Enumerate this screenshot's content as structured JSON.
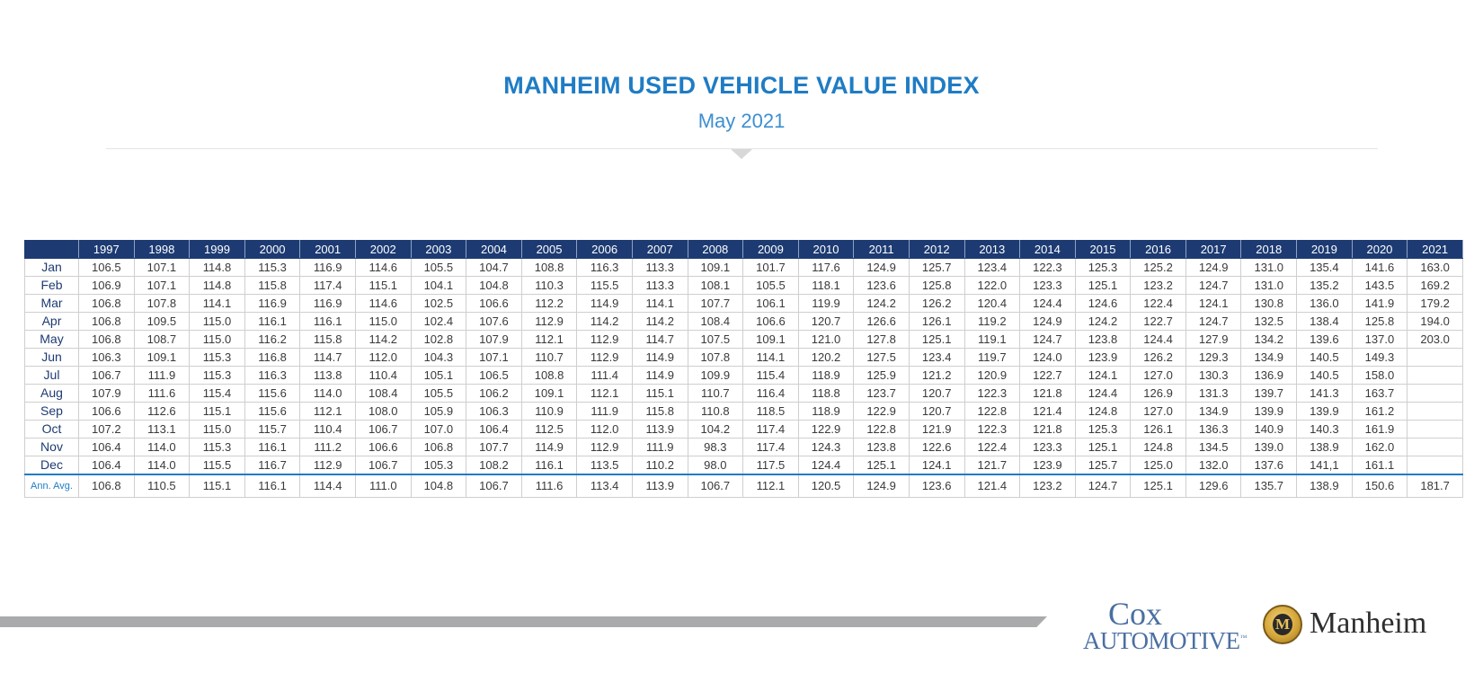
{
  "header": {
    "title": "MANHEIM USED VEHICLE VALUE INDEX",
    "subtitle": "May 2021"
  },
  "chart_data": {
    "type": "table",
    "title": "MANHEIM USED VEHICLE VALUE INDEX",
    "subtitle": "May 2021",
    "columns": [
      "1997",
      "1998",
      "1999",
      "2000",
      "2001",
      "2002",
      "2003",
      "2004",
      "2005",
      "2006",
      "2007",
      "2008",
      "2009",
      "2010",
      "2011",
      "2012",
      "2013",
      "2014",
      "2015",
      "2016",
      "2017",
      "2018",
      "2019",
      "2020",
      "2021"
    ],
    "rows": [
      {
        "label": "Jan",
        "values": [
          "106.5",
          "107.1",
          "114.8",
          "115.3",
          "116.9",
          "114.6",
          "105.5",
          "104.7",
          "108.8",
          "116.3",
          "113.3",
          "109.1",
          "101.7",
          "117.6",
          "124.9",
          "125.7",
          "123.4",
          "122.3",
          "125.3",
          "125.2",
          "124.9",
          "131.0",
          "135.4",
          "141.6",
          "163.0"
        ]
      },
      {
        "label": "Feb",
        "values": [
          "106.9",
          "107.1",
          "114.8",
          "115.8",
          "117.4",
          "115.1",
          "104.1",
          "104.8",
          "110.3",
          "115.5",
          "113.3",
          "108.1",
          "105.5",
          "118.1",
          "123.6",
          "125.8",
          "122.0",
          "123.3",
          "125.1",
          "123.2",
          "124.7",
          "131.0",
          "135.2",
          "143.5",
          "169.2"
        ]
      },
      {
        "label": "Mar",
        "values": [
          "106.8",
          "107.8",
          "114.1",
          "116.9",
          "116.9",
          "114.6",
          "102.5",
          "106.6",
          "112.2",
          "114.9",
          "114.1",
          "107.7",
          "106.1",
          "119.9",
          "124.2",
          "126.2",
          "120.4",
          "124.4",
          "124.6",
          "122.4",
          "124.1",
          "130.8",
          "136.0",
          "141.9",
          "179.2"
        ]
      },
      {
        "label": "Apr",
        "values": [
          "106.8",
          "109.5",
          "115.0",
          "116.1",
          "116.1",
          "115.0",
          "102.4",
          "107.6",
          "112.9",
          "114.2",
          "114.2",
          "108.4",
          "106.6",
          "120.7",
          "126.6",
          "126.1",
          "119.2",
          "124.9",
          "124.2",
          "122.7",
          "124.7",
          "132.5",
          "138.4",
          "125.8",
          "194.0"
        ]
      },
      {
        "label": "May",
        "values": [
          "106.8",
          "108.7",
          "115.0",
          "116.2",
          "115.8",
          "114.2",
          "102.8",
          "107.9",
          "112.1",
          "112.9",
          "114.7",
          "107.5",
          "109.1",
          "121.0",
          "127.8",
          "125.1",
          "119.1",
          "124.7",
          "123.8",
          "124.4",
          "127.9",
          "134.2",
          "139.6",
          "137.0",
          "203.0"
        ]
      },
      {
        "label": "Jun",
        "values": [
          "106.3",
          "109.1",
          "115.3",
          "116.8",
          "114.7",
          "112.0",
          "104.3",
          "107.1",
          "110.7",
          "112.9",
          "114.9",
          "107.8",
          "114.1",
          "120.2",
          "127.5",
          "123.4",
          "119.7",
          "124.0",
          "123.9",
          "126.2",
          "129.3",
          "134.9",
          "140.5",
          "149.3",
          ""
        ]
      },
      {
        "label": "Jul",
        "values": [
          "106.7",
          "111.9",
          "115.3",
          "116.3",
          "113.8",
          "110.4",
          "105.1",
          "106.5",
          "108.8",
          "111.4",
          "114.9",
          "109.9",
          "115.4",
          "118.9",
          "125.9",
          "121.2",
          "120.9",
          "122.7",
          "124.1",
          "127.0",
          "130.3",
          "136.9",
          "140.5",
          "158.0",
          ""
        ]
      },
      {
        "label": "Aug",
        "values": [
          "107.9",
          "111.6",
          "115.4",
          "115.6",
          "114.0",
          "108.4",
          "105.5",
          "106.2",
          "109.1",
          "112.1",
          "115.1",
          "110.7",
          "116.4",
          "118.8",
          "123.7",
          "120.7",
          "122.3",
          "121.8",
          "124.4",
          "126.9",
          "131.3",
          "139.7",
          "141.3",
          "163.7",
          ""
        ]
      },
      {
        "label": "Sep",
        "values": [
          "106.6",
          "112.6",
          "115.1",
          "115.6",
          "112.1",
          "108.0",
          "105.9",
          "106.3",
          "110.9",
          "111.9",
          "115.8",
          "110.8",
          "118.5",
          "118.9",
          "122.9",
          "120.7",
          "122.8",
          "121.4",
          "124.8",
          "127.0",
          "134.9",
          "139.9",
          "139.9",
          "161.2",
          ""
        ]
      },
      {
        "label": "Oct",
        "values": [
          "107.2",
          "113.1",
          "115.0",
          "115.7",
          "110.4",
          "106.7",
          "107.0",
          "106.4",
          "112.5",
          "112.0",
          "113.9",
          "104.2",
          "117.4",
          "122.9",
          "122.8",
          "121.9",
          "122.3",
          "121.8",
          "125.3",
          "126.1",
          "136.3",
          "140.9",
          "140.3",
          "161.9",
          ""
        ]
      },
      {
        "label": "Nov",
        "values": [
          "106.4",
          "114.0",
          "115.3",
          "116.1",
          "111.2",
          "106.6",
          "106.8",
          "107.7",
          "114.9",
          "112.9",
          "111.9",
          "98.3",
          "117.4",
          "124.3",
          "123.8",
          "122.6",
          "122.4",
          "123.3",
          "125.1",
          "124.8",
          "134.5",
          "139.0",
          "138.9",
          "162.0",
          ""
        ]
      },
      {
        "label": "Dec",
        "values": [
          "106.4",
          "114.0",
          "115.5",
          "116.7",
          "112.9",
          "106.7",
          "105.3",
          "108.2",
          "116.1",
          "113.5",
          "110.2",
          "98.0",
          "117.5",
          "124.4",
          "125.1",
          "124.1",
          "121.7",
          "123.9",
          "125.7",
          "125.0",
          "132.0",
          "137.6",
          "141,1",
          "161.1",
          ""
        ]
      }
    ],
    "average_row": {
      "label": "Ann. Avg.",
      "values": [
        "106.8",
        "110.5",
        "115.1",
        "116.1",
        "114.4",
        "111.0",
        "104.8",
        "106.7",
        "111.6",
        "113.4",
        "113.9",
        "106.7",
        "112.1",
        "120.5",
        "124.9",
        "123.6",
        "121.4",
        "123.2",
        "124.7",
        "125.1",
        "129.6",
        "135.7",
        "138.9",
        "150.6",
        "181.7"
      ]
    }
  },
  "footer": {
    "cox_logo_top": "Cox",
    "cox_logo_bottom": "AUTOMOTIVE",
    "cox_logo_tm": "™",
    "manheim_logo_word": "Manheim",
    "manheim_logo_initial": "M"
  },
  "colors": {
    "title": "#1f7cc4",
    "header_bg": "#1d3b72",
    "accent_line": "#1f7cc4",
    "footer_bar": "#a9abad"
  }
}
